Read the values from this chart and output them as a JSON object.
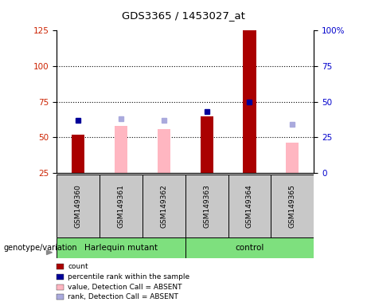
{
  "title": "GDS3365 / 1453027_at",
  "samples": [
    "GSM149360",
    "GSM149361",
    "GSM149362",
    "GSM149363",
    "GSM149364",
    "GSM149365"
  ],
  "left_ylim": [
    25,
    125
  ],
  "right_ylim": [
    0,
    100
  ],
  "left_yticks": [
    25,
    50,
    75,
    100,
    125
  ],
  "right_yticks": [
    0,
    25,
    50,
    75,
    100
  ],
  "right_yticklabels": [
    "0",
    "25",
    "50",
    "75",
    "100%"
  ],
  "red_bars": [
    52,
    null,
    null,
    65,
    125,
    null
  ],
  "blue_squares_rank": [
    37,
    null,
    null,
    43,
    50,
    null
  ],
  "pink_bars": [
    null,
    58,
    56,
    null,
    null,
    46
  ],
  "lightblue_squares_rank": [
    null,
    38,
    37,
    null,
    null,
    34
  ],
  "bar_width": 0.3,
  "red_color": "#AA0000",
  "pink_color": "#FFB6C1",
  "blue_color": "#000099",
  "lightblue_color": "#AAAADD",
  "plot_bg": "#FFFFFF",
  "sample_panel_bg": "#C8C8C8",
  "group_bg": "#7EE07E",
  "harlequin_range": [
    0,
    3
  ],
  "control_range": [
    3,
    6
  ],
  "legend_items": [
    {
      "label": "count",
      "color": "#AA0000"
    },
    {
      "label": "percentile rank within the sample",
      "color": "#000099"
    },
    {
      "label": "value, Detection Call = ABSENT",
      "color": "#FFB6C1"
    },
    {
      "label": "rank, Detection Call = ABSENT",
      "color": "#AAAADD"
    }
  ],
  "genotype_label": "genotype/variation",
  "harlequin_label": "Harlequin mutant",
  "control_label": "control"
}
